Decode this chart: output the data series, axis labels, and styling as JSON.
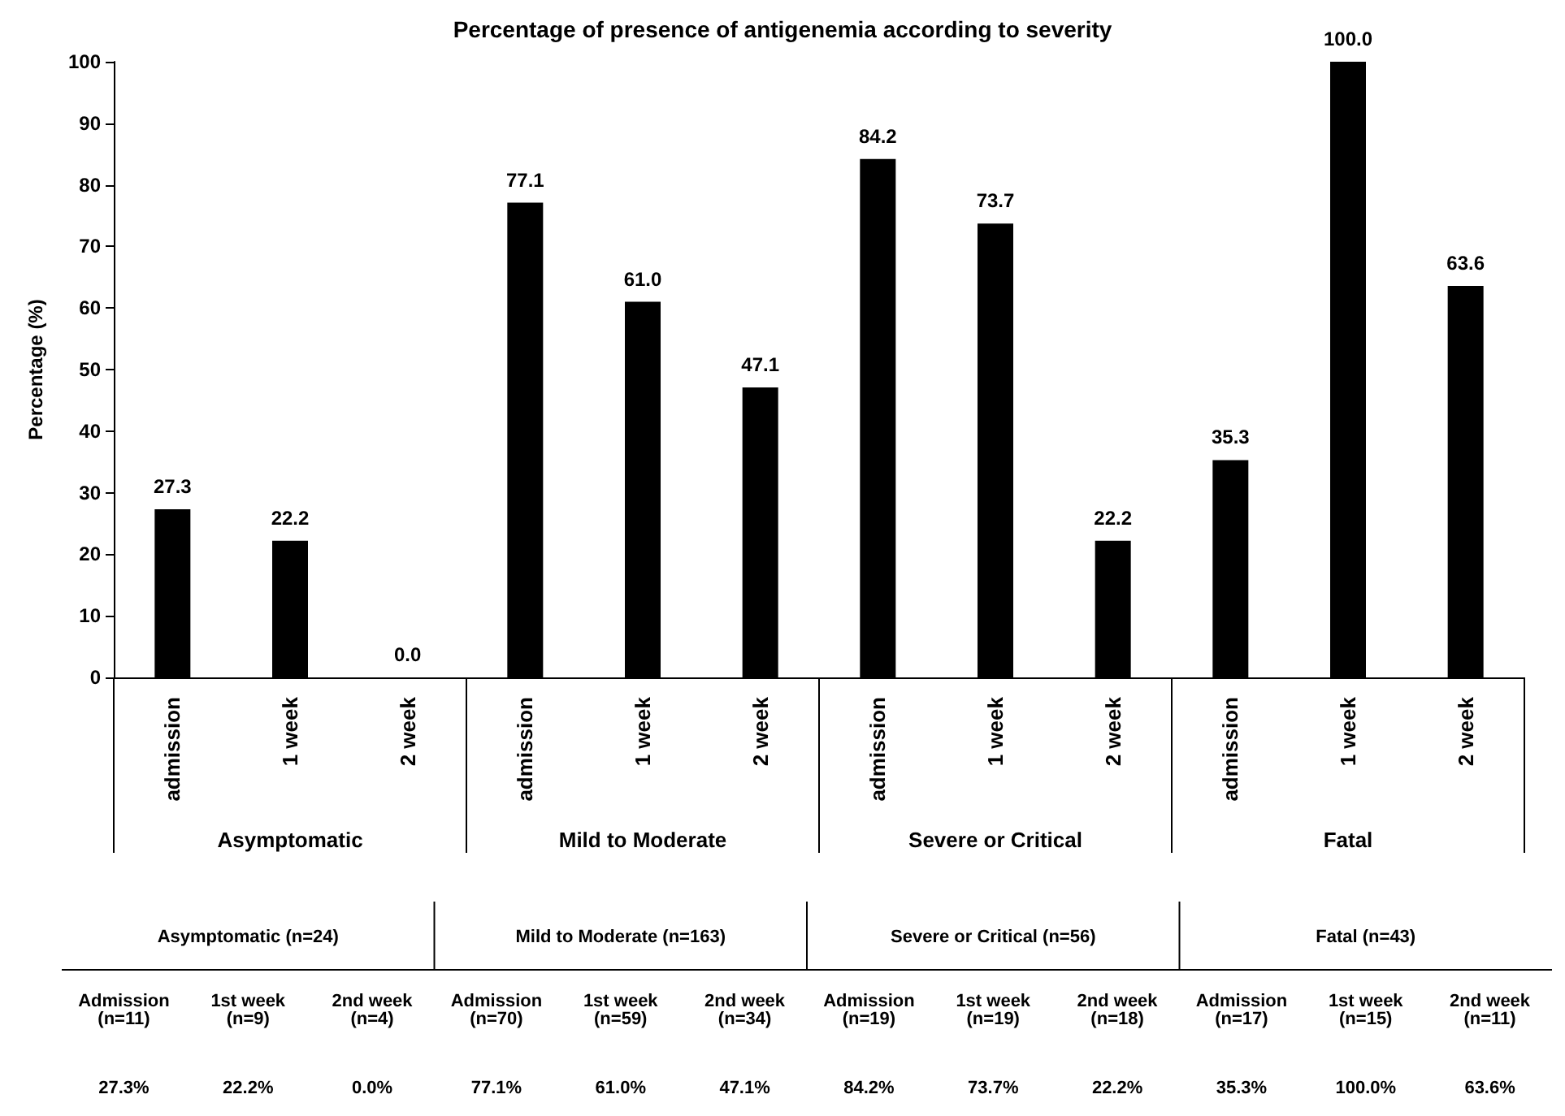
{
  "chart_data": {
    "type": "bar",
    "title": "Percentage of presence of antigenemia according to severity",
    "ylabel": "Percentage (%)",
    "categories": [
      "admission",
      "1 week",
      "2 week",
      "admission",
      "1 week",
      "2 week",
      "admission",
      "1 week",
      "2 week",
      "admission",
      "1 week",
      "2 week"
    ],
    "values": [
      27.3,
      22.2,
      0.0,
      77.1,
      61.0,
      47.1,
      84.2,
      73.7,
      22.2,
      35.3,
      100.0,
      63.6
    ],
    "value_labels": [
      "27.3",
      "22.2",
      "0.0",
      "77.1",
      "61.0",
      "47.1",
      "84.2",
      "73.7",
      "22.2",
      "35.3",
      "100.0",
      "63.6"
    ],
    "color": "#000000",
    "ylim": [
      0,
      100
    ],
    "yticks": [
      0,
      10,
      20,
      30,
      40,
      50,
      60,
      70,
      80,
      90,
      100
    ],
    "grid": false,
    "annotations": [
      "Asymptomatic",
      "Mild to Moderate",
      "Severe or Critical",
      "Fatal",
      "Asymptomatic (n=24)",
      "Mild to Moderate (n=163)",
      "Severe or Critical (n=56)",
      "Fatal (n=43)",
      "Admission\n(n=11)",
      "1st week\n(n=9)",
      "2nd week\n(n=4)",
      "Admission\n(n=70)",
      "1st week\n(n=59)",
      "2nd week\n(n=34)",
      "Admission\n(n=19)",
      "1st week\n(n=19)",
      "2nd week\n(n=18)",
      "Admission\n(n=17)",
      "1st week\n(n=15)",
      "2nd week\n(n=11)",
      "27.3%",
      "22.2%",
      "0.0%",
      "77.1%",
      "61.0%",
      "47.1%",
      "84.2%",
      "73.7%",
      "22.2%",
      "35.3%",
      "100.0%",
      "63.6%"
    ]
  }
}
